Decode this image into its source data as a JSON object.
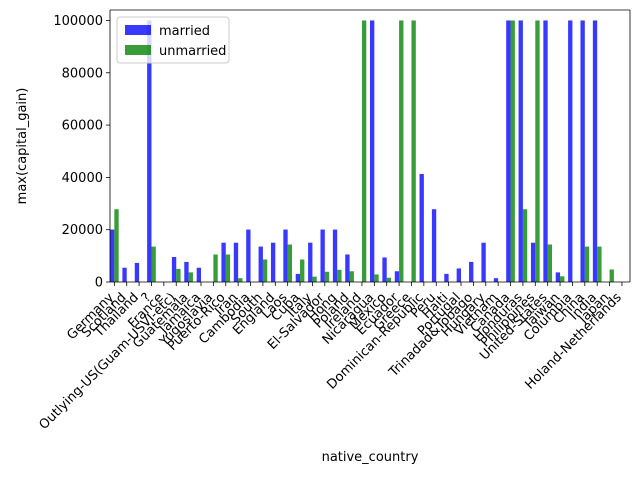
{
  "chart_data": {
    "type": "bar",
    "xlabel": "native_country",
    "ylabel": "max(capital_gain)",
    "ylim": [
      0,
      104000
    ],
    "yticks": [
      0,
      20000,
      40000,
      60000,
      80000,
      100000
    ],
    "grid": false,
    "legend_position": "upper-left",
    "categories": [
      "Germany",
      "Scotland",
      "Thailand",
      "?",
      "France",
      "Outlying-US(Guam-USVI-etc)",
      "Guatemala",
      "Jamaica",
      "Yugoslavia",
      "Puerto-Rico",
      "Iran",
      "Cambodia",
      "South",
      "England",
      "Laos",
      "Cuba",
      "Italy",
      "El-Salvador",
      "Hong",
      "Poland",
      "Ireland",
      "Nicaragua",
      "Mexico",
      "Ecuador",
      "Greece",
      "Dominican-Republic",
      "Peru",
      "Haiti",
      "Portugal",
      "Trinadad&Tobago",
      "Hungary",
      "Vietnam",
      "Canada",
      "Honduras",
      "Philippines",
      "United-States",
      "Taiwan",
      "Columbia",
      "China",
      "India",
      "Japan",
      "Holand-Netherlands"
    ],
    "series": [
      {
        "name": "married",
        "color": "#0000ff",
        "values": [
          20051,
          5455,
          7298,
          99999,
          0,
          9562,
          7688,
          5455,
          0,
          15024,
          15024,
          20051,
          13550,
          15024,
          20051,
          3103,
          15024,
          20051,
          20051,
          10520,
          0,
          99999,
          9386,
          4101,
          0,
          41310,
          27828,
          3103,
          5178,
          7688,
          15024,
          1455,
          99999,
          99999,
          15024,
          99999,
          3674,
          99999,
          99999,
          99999,
          0,
          0
        ]
      },
      {
        "name": "unmarried",
        "color": "#008000",
        "values": [
          27828,
          0,
          0,
          13550,
          0,
          5013,
          3674,
          0,
          10520,
          10520,
          1471,
          0,
          8614,
          0,
          14344,
          8614,
          2050,
          3908,
          4650,
          4101,
          99999,
          2907,
          1639,
          99999,
          99999,
          0,
          0,
          0,
          0,
          0,
          0,
          0,
          99999,
          27828,
          99999,
          14344,
          2176,
          0,
          13550,
          13550,
          4787,
          0
        ]
      }
    ]
  }
}
